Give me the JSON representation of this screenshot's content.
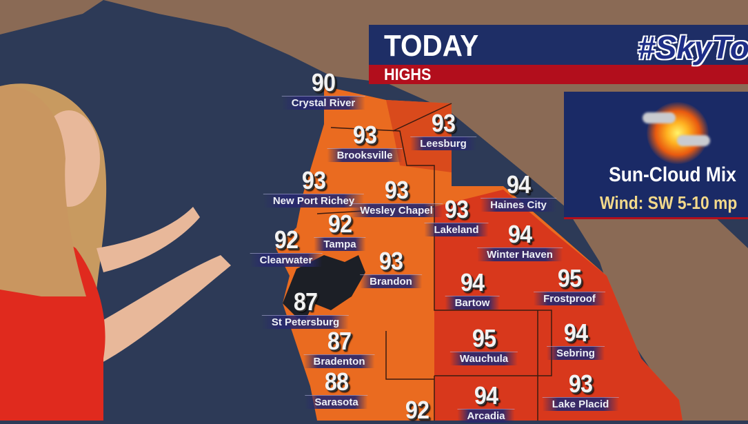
{
  "banner": {
    "title": "TODAY",
    "subtitle": "HIGHS",
    "logo": "#SkyTow"
  },
  "forecast_panel": {
    "icon": "sun-cloud-icon",
    "condition": "Sun-Cloud Mix",
    "wind": "Wind: SW 5-10 mp"
  },
  "colors": {
    "banner_blue": "#1e2e66",
    "banner_red": "#b20e1c",
    "ocean": "#2d3a57",
    "land": "#8a6a55",
    "hot_orange": "#e8621c",
    "hot_red": "#d8351c"
  },
  "cities": [
    {
      "name": "Crystal River",
      "temp": "90"
    },
    {
      "name": "Brooksville",
      "temp": "93"
    },
    {
      "name": "Leesburg",
      "temp": "93"
    },
    {
      "name": "New Port Richey",
      "temp": "93"
    },
    {
      "name": "Wesley Chapel",
      "temp": "93"
    },
    {
      "name": "Haines City",
      "temp": "94"
    },
    {
      "name": "Lakeland",
      "temp": "93"
    },
    {
      "name": "Tampa",
      "temp": "92"
    },
    {
      "name": "Winter Haven",
      "temp": "94"
    },
    {
      "name": "Clearwater",
      "temp": "92"
    },
    {
      "name": "Brandon",
      "temp": "93"
    },
    {
      "name": "Bartow",
      "temp": "94"
    },
    {
      "name": "Frostproof",
      "temp": "95"
    },
    {
      "name": "St Petersburg",
      "temp": "87"
    },
    {
      "name": "Bradenton",
      "temp": "87"
    },
    {
      "name": "Wauchula",
      "temp": "95"
    },
    {
      "name": "Sebring",
      "temp": "94"
    },
    {
      "name": "Sarasota",
      "temp": "88"
    },
    {
      "name": "Lake Placid",
      "temp": "93"
    },
    {
      "name": "Arcadia",
      "temp": "94"
    },
    {
      "name": "",
      "temp": "92"
    }
  ]
}
